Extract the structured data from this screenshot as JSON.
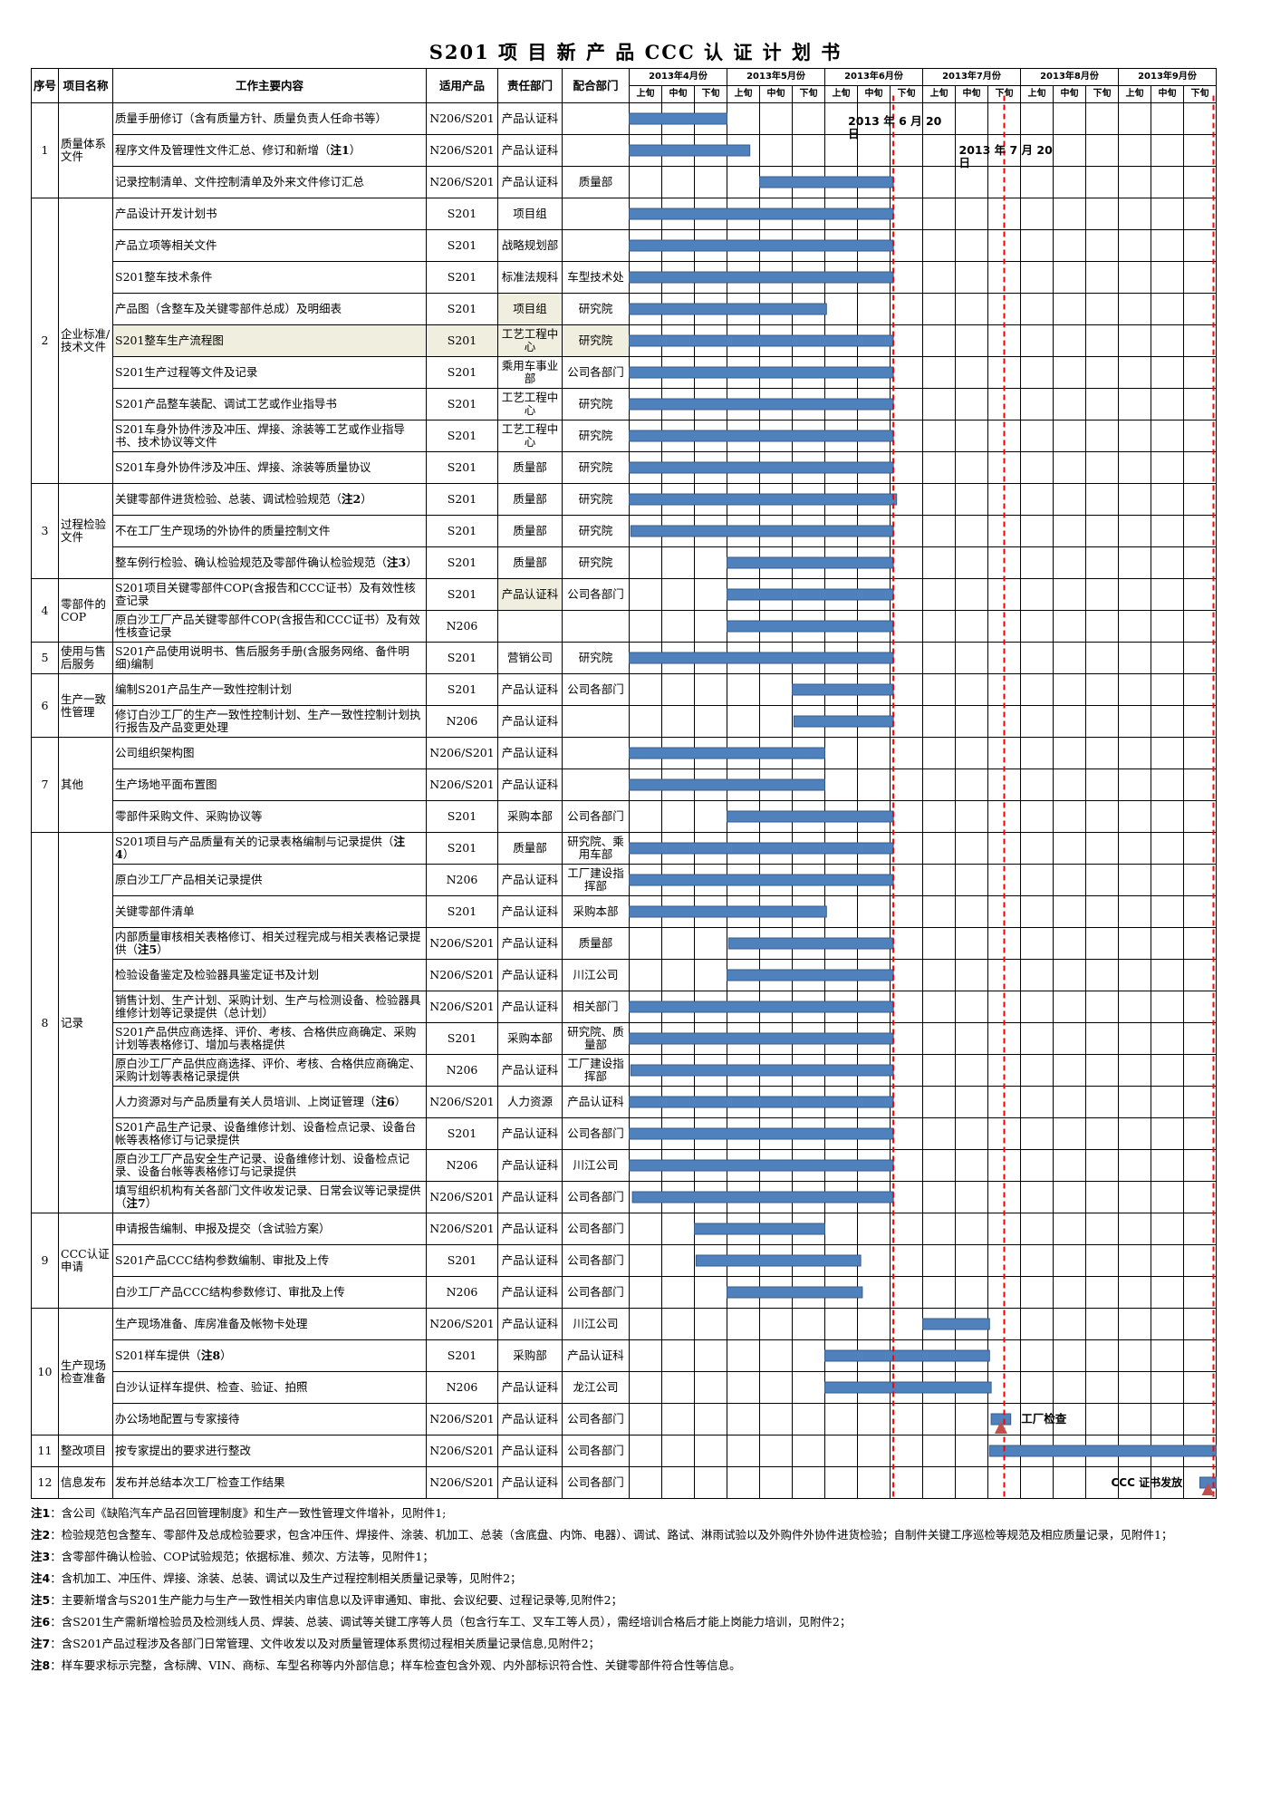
{
  "title": "S201 项 目 新 产 品 CCC 认 证 计 划 书",
  "headers": {
    "seq": "序号",
    "item": "项目名称",
    "content": "工作主要内容",
    "product": "适用产品",
    "dept": "责任部门",
    "coop": "配合部门",
    "months": [
      "2013年4月份",
      "2013年5月份",
      "2013年6月份",
      "2013年7月份",
      "2013年8月份",
      "2013年9月份"
    ],
    "periods": [
      "上旬",
      "中旬",
      "下旬"
    ]
  },
  "groups": [
    {
      "no": "1",
      "name": "质量体系文件",
      "rows": [
        {
          "content": "质量手册修订（含有质量方针、质量负责人任命书等）",
          "product": "N206/S201",
          "dept": "产品认证科",
          "coop": "",
          "bar": [
            0,
            3.0
          ]
        },
        {
          "content": "程序文件及管理性文件汇总、修订和新增（",
          "note": "注1",
          "content_after": "）",
          "product": "N206/S201",
          "dept": "产品认证科",
          "coop": "",
          "bar": [
            0,
            3.7
          ]
        },
        {
          "content": "记录控制清单、文件控制清单及外来文件修订汇总",
          "product": "N206/S201",
          "dept": "产品认证科",
          "coop": "质量部",
          "bar": [
            4.0,
            8.1
          ]
        }
      ]
    },
    {
      "no": "2",
      "name": "企业标准/技术文件",
      "rows": [
        {
          "content": "产品设计开发计划书",
          "product": "S201",
          "dept": "项目组",
          "coop": "",
          "bar": [
            0,
            8.1
          ]
        },
        {
          "content": "产品立项等相关文件",
          "product": "S201",
          "dept": "战略规划部",
          "coop": "",
          "bar": [
            0,
            8.1
          ]
        },
        {
          "content": "S201整车技术条件",
          "product": "S201",
          "dept": "标准法规科",
          "coop": "车型技术处",
          "bar": [
            0,
            8.1
          ]
        },
        {
          "content": "产品图（含整车及关键零部件总成）及明细表",
          "product": "S201",
          "dept": "项目组",
          "coop": "研究院",
          "bar": [
            0,
            6.05
          ],
          "shade_dept": true
        },
        {
          "content": "S201整车生产流程图",
          "product": "S201",
          "dept": "工艺工程中心",
          "coop": "研究院",
          "bar": [
            0,
            8.1
          ],
          "shade_row": true
        },
        {
          "content": "S201生产过程等文件及记录",
          "product": "S201",
          "dept": "乘用车事业部",
          "coop": "公司各部门",
          "bar": [
            0,
            8.1
          ]
        },
        {
          "content": "S201产品整车装配、调试工艺或作业指导书",
          "product": "S201",
          "dept": "工艺工程中心",
          "coop": "研究院",
          "bar": [
            0,
            8.1
          ]
        },
        {
          "content": "S201车身外协件涉及冲压、焊接、涂装等工艺或作业指导书、技术协议等文件",
          "product": "S201",
          "dept": "工艺工程中心",
          "coop": "研究院",
          "bar": [
            0,
            8.1
          ]
        },
        {
          "content": "S201车身外协件涉及冲压、焊接、涂装等质量协议",
          "product": "S201",
          "dept": "质量部",
          "coop": "研究院",
          "bar": [
            0,
            8.1
          ]
        }
      ]
    },
    {
      "no": "3",
      "name": "过程检验文件",
      "rows": [
        {
          "content": "关键零部件进货检验、总装、调试检验规范（",
          "note": "注2",
          "content_after": "）",
          "product": "S201",
          "dept": "质量部",
          "coop": "研究院",
          "bar": [
            0,
            8.2
          ]
        },
        {
          "content": "不在工厂生产现场的外协件的质量控制文件",
          "product": "S201",
          "dept": "质量部",
          "coop": "研究院",
          "bar": [
            0.05,
            8.1
          ]
        },
        {
          "content": "整车例行检验、确认检验规范及零部件确认检验规范（",
          "note": "注3",
          "content_after": "）",
          "product": "S201",
          "dept": "质量部",
          "coop": "研究院",
          "bar": [
            3.0,
            8.1
          ]
        }
      ]
    },
    {
      "no": "4",
      "name": "零部件的COP",
      "rows": [
        {
          "content": "S201项目关键零部件COP(含报告和CCC证书）及有效性核查记录",
          "product": "S201",
          "dept": "产品认证科",
          "coop": "公司各部门",
          "bar": [
            3.0,
            8.1
          ],
          "shade_dept": true
        },
        {
          "content": "原白沙工厂产品关键零部件COP(含报告和CCC证书）及有效性核查记录",
          "product": "N206",
          "dept": "",
          "coop": "",
          "bar": [
            3.0,
            8.1
          ]
        }
      ]
    },
    {
      "no": "5",
      "name": "使用与售后服务",
      "rows": [
        {
          "content": "S201产品使用说明书、售后服务手册(含服务网络、备件明细)编制",
          "product": "S201",
          "dept": "营销公司",
          "coop": "研究院",
          "bar": [
            0,
            8.1
          ]
        }
      ]
    },
    {
      "no": "6",
      "name": "生产一致性管理",
      "rows": [
        {
          "content": "编制S201产品生产一致性控制计划",
          "product": "S201",
          "dept": "产品认证科",
          "coop": "公司各部门",
          "bar": [
            5.0,
            8.1
          ]
        },
        {
          "content": "修订白沙工厂的生产一致性控制计划、生产一致性控制计划执行报告及产品变更处理",
          "product": "N206",
          "dept": "产品认证科",
          "coop": "",
          "bar": [
            5.05,
            8.1
          ]
        }
      ]
    },
    {
      "no": "7",
      "name": "其他",
      "rows": [
        {
          "content": "公司组织架构图",
          "product": "N206/S201",
          "dept": "产品认证科",
          "coop": "",
          "bar": [
            0,
            6.0
          ]
        },
        {
          "content": "生产场地平面布置图",
          "product": "N206/S201",
          "dept": "产品认证科",
          "coop": "",
          "bar": [
            0,
            6.0
          ]
        },
        {
          "content": "零部件采购文件、采购协议等",
          "product": "S201",
          "dept": "采购本部",
          "coop": "公司各部门",
          "bar": [
            3.0,
            8.1
          ]
        }
      ]
    },
    {
      "no": "8",
      "name": "记录",
      "rows": [
        {
          "content": "S201项目与产品质量有关的记录表格编制与记录提供（",
          "note": "注4",
          "content_after": "）",
          "product": "S201",
          "dept": "质量部",
          "coop": "研究院、乘用车部",
          "bar": [
            0,
            8.1
          ]
        },
        {
          "content": "原白沙工厂产品相关记录提供",
          "product": "N206",
          "dept": "产品认证科",
          "coop": "工厂建设指挥部",
          "bar": [
            0,
            8.1
          ]
        },
        {
          "content": "关键零部件清单",
          "product": "S201",
          "dept": "产品认证科",
          "coop": "采购本部",
          "bar": [
            0,
            6.05
          ]
        },
        {
          "content": "内部质量审核相关表格修订、相关过程完成与相关表格记录提供（",
          "note": "注5",
          "content_after": "）",
          "product": "N206/S201",
          "dept": "产品认证科",
          "coop": "质量部",
          "bar": [
            3.05,
            8.1
          ]
        },
        {
          "content": "检验设备鉴定及检验器具鉴定证书及计划",
          "product": "N206/S201",
          "dept": "产品认证科",
          "coop": "川江公司",
          "bar": [
            3.0,
            8.1
          ]
        },
        {
          "content": "销售计划、生产计划、采购计划、生产与检测设备、检验器具维修计划等记录提供（总计划）",
          "product": "N206/S201",
          "dept": "产品认证科",
          "coop": "相关部门",
          "bar": [
            0,
            8.1
          ]
        },
        {
          "content": "S201产品供应商选择、评价、考核、合格供应商确定、采购计划等表格修订、增加与表格提供",
          "product": "S201",
          "dept": "采购本部",
          "coop": "研究院、质量部",
          "bar": [
            0,
            8.1
          ]
        },
        {
          "content": "原白沙工厂产品供应商选择、评价、考核、合格供应商确定、采购计划等表格记录提供",
          "product": "N206",
          "dept": "产品认证科",
          "coop": "工厂建设指挥部",
          "bar": [
            0.05,
            8.1
          ]
        },
        {
          "content": "人力资源对与产品质量有关人员培训、上岗证管理（",
          "note": "注6",
          "content_after": "）",
          "product": "N206/S201",
          "dept": "人力资源",
          "coop": "产品认证科",
          "bar": [
            0,
            8.1
          ]
        },
        {
          "content": "S201产品生产记录、设备维修计划、设备检点记录、设备台帐等表格修订与记录提供",
          "product": "S201",
          "dept": "产品认证科",
          "coop": "公司各部门",
          "bar": [
            0,
            8.1
          ]
        },
        {
          "content": "原白沙工厂产品安全生产记录、设备维修计划、设备检点记录、设备台帐等表格修订与记录提供",
          "product": "N206",
          "dept": "产品认证科",
          "coop": "川江公司",
          "bar": [
            0,
            8.1
          ]
        },
        {
          "content": "填写组织机构有关各部门文件收发记录、日常会议等记录提供（",
          "note": "注7",
          "content_after": "）",
          "product": "N206/S201",
          "dept": "产品认证科",
          "coop": "公司各部门",
          "bar": [
            0.1,
            8.1
          ]
        }
      ]
    },
    {
      "no": "9",
      "name": "CCC认证申请",
      "rows": [
        {
          "content": "申请报告编制、申报及提交（含试验方案）",
          "product": "N206/S201",
          "dept": "产品认证科",
          "coop": "公司各部门",
          "bar": [
            2.0,
            6.0
          ]
        },
        {
          "content": "S201产品CCC结构参数编制、审批及上传",
          "product": "S201",
          "dept": "产品认证科",
          "coop": "公司各部门",
          "bar": [
            2.05,
            7.1
          ]
        },
        {
          "content": "白沙工厂产品CCC结构参数修订、审批及上传",
          "product": "N206",
          "dept": "产品认证科",
          "coop": "公司各部门",
          "bar": [
            3.0,
            7.15
          ]
        }
      ]
    },
    {
      "no": "10",
      "name": "生产现场检查准备",
      "rows": [
        {
          "content": "生产现场准备、库房准备及帐物卡处理",
          "product": "N206/S201",
          "dept": "产品认证科",
          "coop": "川江公司",
          "bar": [
            9.0,
            11.05
          ]
        },
        {
          "content": "S201样车提供（",
          "note": "注8",
          "content_after": "）",
          "product": "S201",
          "dept": "采购部",
          "coop": "产品认证科",
          "bar": [
            6.0,
            11.05
          ]
        },
        {
          "content": "白沙认证样车提供、检查、验证、拍照",
          "product": "N206",
          "dept": "产品认证科",
          "coop": "龙江公司",
          "bar": [
            6.0,
            11.1
          ]
        },
        {
          "content": "办公场地配置与专家接待",
          "product": "N206/S201",
          "dept": "产品认证科",
          "coop": "公司各部门",
          "bar": [
            11.1,
            11.7
          ]
        }
      ]
    },
    {
      "no": "11",
      "name": "整改项目",
      "rows": [
        {
          "content": "按专家提出的要求进行整改",
          "product": "N206/S201",
          "dept": "产品认证科",
          "coop": "公司各部门",
          "bar": [
            11.05,
            18.0
          ]
        }
      ]
    },
    {
      "no": "12",
      "name": "信息发布",
      "rows": [
        {
          "content": "发布并总结本次工厂检查工作结果",
          "product": "N206/S201",
          "dept": "产品认证科",
          "coop": "公司各部门",
          "bar": [
            17.5,
            18.0
          ]
        }
      ]
    }
  ],
  "annotations": {
    "deadline1": "2013 年 6 月 20\n日",
    "deadline2": "2013 年 7 月 20\n日",
    "factory_check": "工厂检查",
    "ccc_issue": "CCC 证书发放"
  },
  "notes": [
    {
      "label": "注1",
      "text": "：含公司《缺陷汽车产品召回管理制度》和生产一致性管理文件增补，见附件1;"
    },
    {
      "label": "注2",
      "text": "：检验规范包含整车、零部件及总成检验要求，包含冲压件、焊接件、涂装、机加工、总装（含底盘、内饰、电器）、调试、路试、淋雨试验以及外购件外协件进货检验；自制件关键工序巡检等规范及相应质量记录，见附件1；"
    },
    {
      "label": "注3",
      "text": "：含零部件确认检验、COP试验规范；依据标准、频次、方法等，见附件1；"
    },
    {
      "label": "注4",
      "text": "：含机加工、冲压件、焊接、涂装、总装、调试以及生产过程控制相关质量记录等，见附件2；"
    },
    {
      "label": "注5",
      "text": "：主要新增含与S201生产能力与生产一致性相关内审信息以及评审通知、审批、会议纪要、过程记录等,见附件2；"
    },
    {
      "label": "注6",
      "text": "：含S201生产需新增检验员及检测线人员、焊装、总装、调试等关键工序等人员（包含行车工、叉车工等人员），需经培训合格后才能上岗能力培训，见附件2；"
    },
    {
      "label": "注7",
      "text": "：含S201产品过程涉及各部门日常管理、文件收发以及对质量管理体系贯彻过程相关质量记录信息,见附件2；"
    },
    {
      "label": "注8",
      "text": "：样车要求标示完整，含标牌、VIN、商标、车型名称等内外部信息；样车检查包含外观、内外部标识符合性、关键零部件符合性等信息。"
    }
  ],
  "colors": {
    "bar": "#4f81bd",
    "bar_border": "#385d8a",
    "deadline": "#ff0000",
    "marker": "#c0504d",
    "shade": "#f0eedf"
  }
}
